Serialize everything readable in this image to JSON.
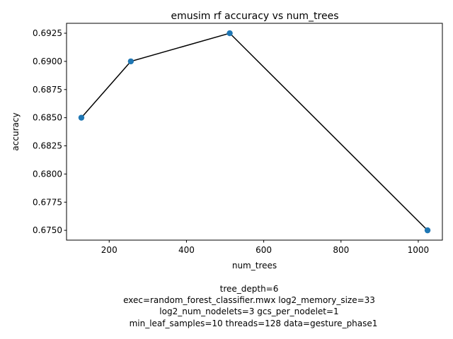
{
  "chart_data": {
    "type": "line",
    "title": "emusim rf accuracy vs num_trees",
    "xlabel": "num_trees",
    "ylabel": "accuracy",
    "x_ticks": [
      200,
      400,
      600,
      800,
      1000
    ],
    "y_ticks": [
      0.675,
      0.6775,
      0.68,
      0.6825,
      0.685,
      0.6875,
      0.69,
      0.6925
    ],
    "y_tick_labels": [
      "0.6750",
      "0.6775",
      "0.6800",
      "0.6825",
      "0.6850",
      "0.6875",
      "0.6900",
      "0.6925"
    ],
    "xlim": [
      89.6,
      1062.4
    ],
    "ylim": [
      0.67413,
      0.69338
    ],
    "grid": false,
    "series": [
      {
        "x": [
          128,
          256,
          512,
          1024
        ],
        "y": [
          0.685,
          0.69,
          0.6925,
          0.675
        ],
        "line_color": "#000000",
        "marker_color": "#1f77b4"
      }
    ]
  },
  "caption_lines": [
    "tree_depth=6",
    "exec=random_forest_classifier.mwx   log2_memory_size=33",
    "log2_num_nodelets=3   gcs_per_nodelet=1",
    "min_leaf_samples=10   threads=128   data=gesture_phase1"
  ]
}
